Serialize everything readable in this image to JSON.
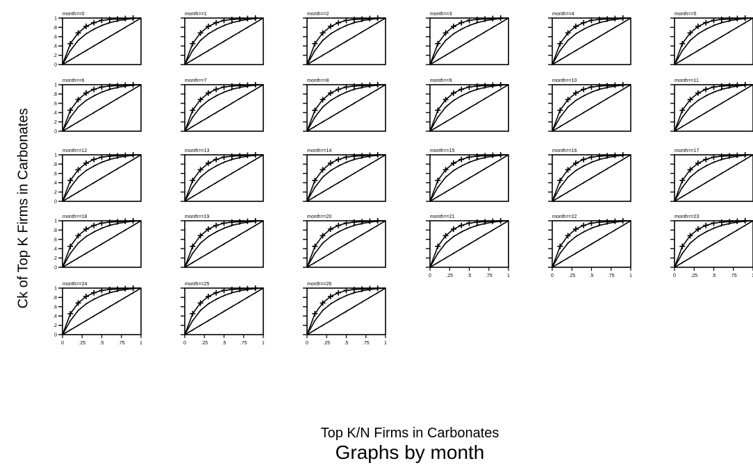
{
  "chart_data": {
    "type": "line",
    "ylabel": "Ck of Top K Firms in Carbonates",
    "xlabel": "Top K/N Firms in Carbonates",
    "byline": "Graphs by month",
    "xlim": [
      0,
      1
    ],
    "ylim": [
      0,
      1
    ],
    "x_ticks": [
      "0",
      ".25",
      ".5",
      ".75",
      "1"
    ],
    "y_ticks": [
      "0",
      ".2",
      ".4",
      ".6",
      ".8",
      "1"
    ],
    "series": [
      {
        "name": "",
        "marker": "cross",
        "x": [
          0,
          0.1,
          0.2,
          0.3,
          0.4,
          0.5,
          0.6,
          0.7,
          0.8,
          0.9,
          1
        ],
        "y": [
          0,
          0.45,
          0.68,
          0.82,
          0.9,
          0.95,
          0.97,
          0.98,
          0.99,
          1,
          1
        ]
      },
      {
        "name": "",
        "marker": "tick",
        "x": [
          0,
          0.1,
          0.2,
          0.3,
          0.4,
          0.5,
          0.6,
          0.7,
          0.8,
          0.9,
          1
        ],
        "y": [
          0,
          0.3,
          0.52,
          0.66,
          0.76,
          0.84,
          0.9,
          0.94,
          0.97,
          0.99,
          1
        ]
      },
      {
        "name": "",
        "marker": "tick",
        "x": [
          0,
          0.1,
          0.2,
          0.3,
          0.4,
          0.5,
          0.6,
          0.7,
          0.8,
          0.9,
          1
        ],
        "y": [
          0,
          0.1,
          0.2,
          0.3,
          0.4,
          0.5,
          0.6,
          0.7,
          0.8,
          0.9,
          1
        ]
      }
    ],
    "panels": [
      {
        "title": "month==0",
        "x_axis": false
      },
      {
        "title": "month==1",
        "x_axis": false
      },
      {
        "title": "month==2",
        "x_axis": false
      },
      {
        "title": "month==3",
        "x_axis": false
      },
      {
        "title": "month==4",
        "x_axis": false
      },
      {
        "title": "month==5",
        "x_axis": false
      },
      {
        "title": "month==6",
        "x_axis": false
      },
      {
        "title": "month==7",
        "x_axis": false
      },
      {
        "title": "month==8",
        "x_axis": false
      },
      {
        "title": "month==9",
        "x_axis": false
      },
      {
        "title": "month==10",
        "x_axis": false
      },
      {
        "title": "month==11",
        "x_axis": false
      },
      {
        "title": "month==12",
        "x_axis": false
      },
      {
        "title": "month==13",
        "x_axis": false
      },
      {
        "title": "month==14",
        "x_axis": false
      },
      {
        "title": "month==15",
        "x_axis": false
      },
      {
        "title": "month==16",
        "x_axis": false
      },
      {
        "title": "month==17",
        "x_axis": false
      },
      {
        "title": "month==18",
        "x_axis": false
      },
      {
        "title": "month==19",
        "x_axis": false
      },
      {
        "title": "month==20",
        "x_axis": false
      },
      {
        "title": "month==21",
        "x_axis": true
      },
      {
        "title": "month==22",
        "x_axis": true
      },
      {
        "title": "month==23",
        "x_axis": true
      },
      {
        "title": "month==24",
        "x_axis": true
      },
      {
        "title": "month==25",
        "x_axis": true
      },
      {
        "title": "month==26",
        "x_axis": true
      }
    ]
  }
}
